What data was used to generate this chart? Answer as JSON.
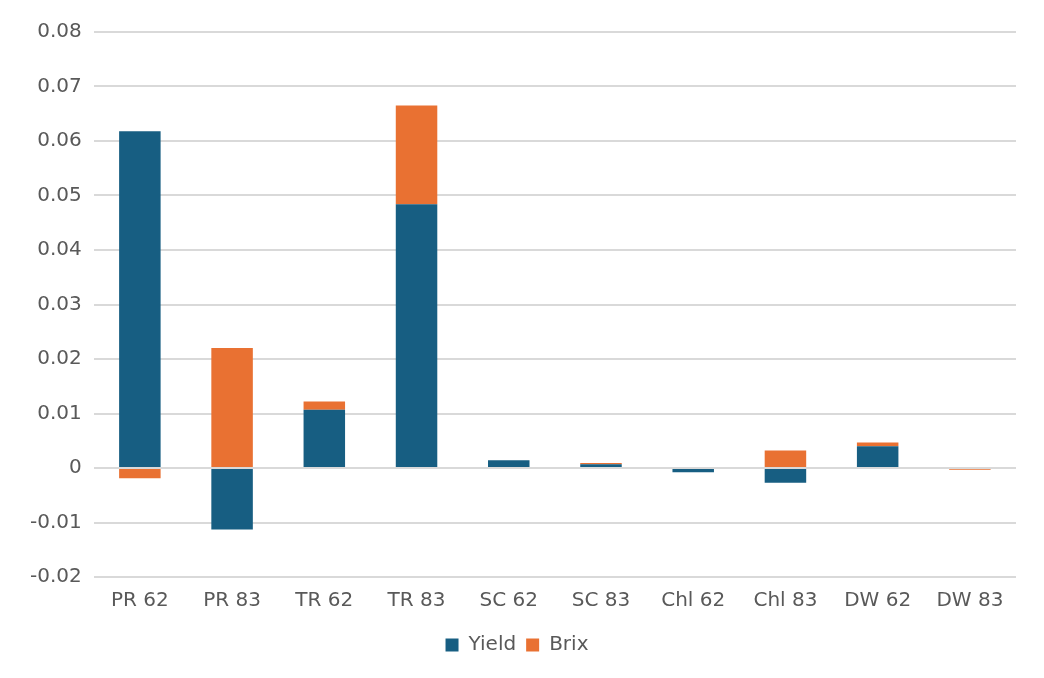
{
  "chart_data": {
    "type": "bar",
    "stacked": true,
    "categories": [
      "PR 62",
      "PR 83",
      "TR 62",
      "TR 83",
      "SC 62",
      "SC 83",
      "Chl 62",
      "Chl 83",
      "DW 62",
      "DW 83"
    ],
    "series": [
      {
        "name": "Yield",
        "color": "#175e82",
        "values": [
          0.0618,
          -0.0113,
          0.0107,
          0.0484,
          0.0014,
          0.0007,
          -0.0008,
          -0.0027,
          0.004,
          null
        ]
      },
      {
        "name": "Brix",
        "color": "#e97132",
        "values": [
          -0.0019,
          0.022,
          0.0015,
          0.0181,
          null,
          0.0002,
          0,
          0.0032,
          0.0007,
          -0.0003
        ]
      }
    ],
    "ylim": [
      -0.02,
      0.08
    ],
    "yticks": [
      -0.02,
      -0.01,
      0,
      0.01,
      0.02,
      0.03,
      0.04,
      0.05,
      0.06,
      0.07,
      0.08
    ],
    "grid": "y",
    "legend": "bottom"
  }
}
